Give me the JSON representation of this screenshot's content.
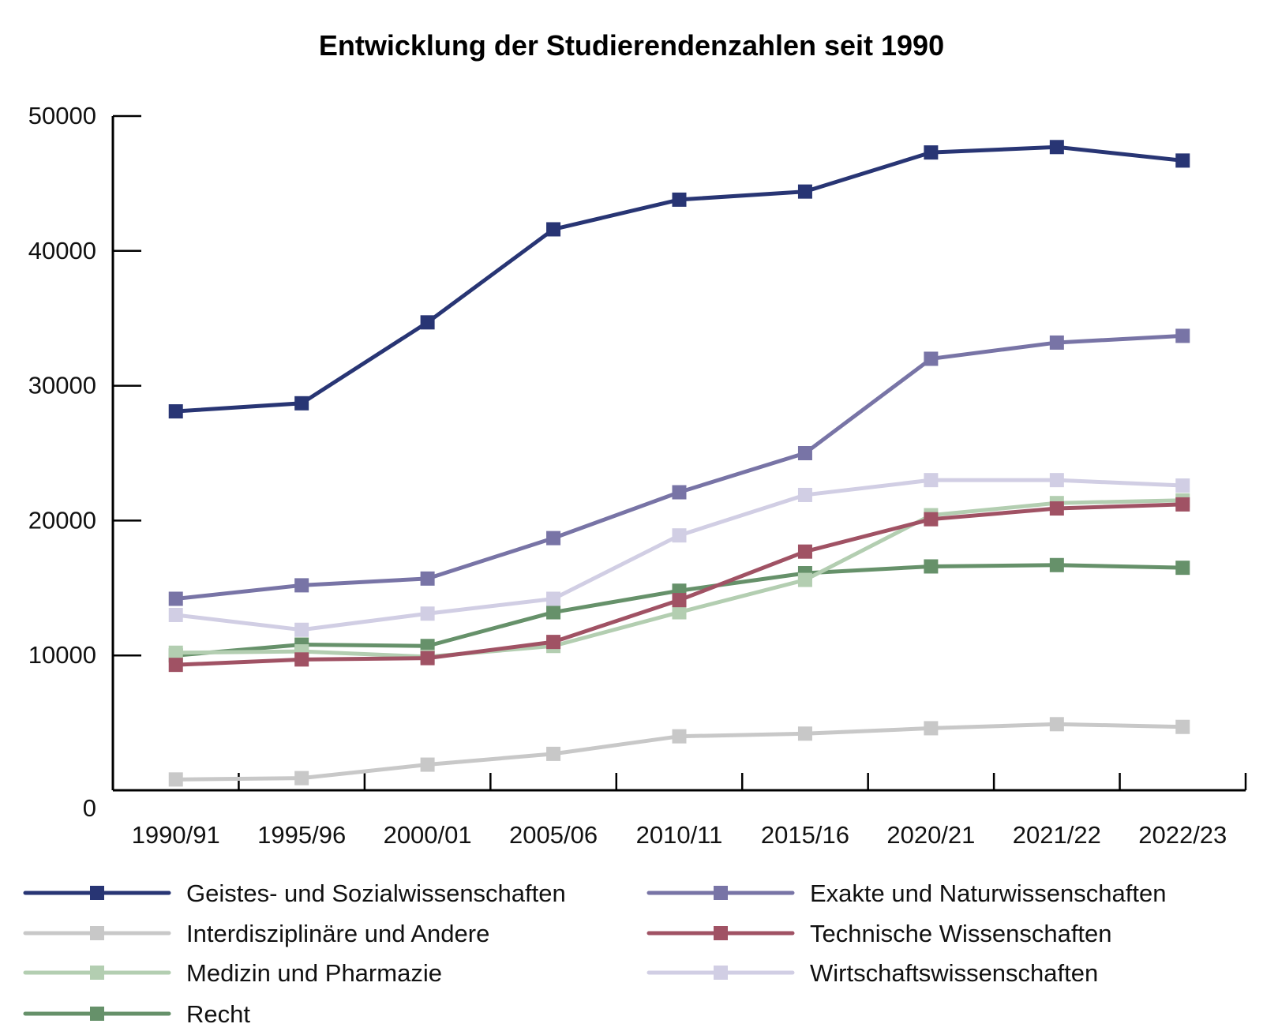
{
  "chart_data": {
    "type": "line",
    "title": "Entwicklung der Studierendenzahlen seit 1990",
    "xlabel": "",
    "ylabel": "",
    "ylim": [
      0,
      50000
    ],
    "yticks": [
      0,
      10000,
      20000,
      30000,
      40000,
      50000
    ],
    "ytick_labels": [
      "0",
      "10000",
      "20000",
      "30000",
      "40000",
      "50000"
    ],
    "grid": false,
    "legend_position": "bottom",
    "categories": [
      "1990/91",
      "1995/96",
      "2000/01",
      "2005/06",
      "2010/11",
      "2015/16",
      "2020/21",
      "2021/22",
      "2022/23"
    ],
    "series": [
      {
        "name": "Geistes- und Sozialwissenschaften",
        "color": "#283574",
        "marker": "square",
        "values": [
          28100,
          28700,
          34700,
          41600,
          43800,
          44400,
          47300,
          47700,
          46700
        ]
      },
      {
        "name": "Exakte und Naturwissenschaften",
        "color": "#7874A6",
        "marker": "square",
        "values": [
          14200,
          15200,
          15700,
          18700,
          22100,
          25000,
          32000,
          33200,
          33700
        ]
      },
      {
        "name": "Interdisziplinäre und Andere",
        "color": "#C8C8C8",
        "marker": "square",
        "values": [
          800,
          900,
          1900,
          2700,
          4000,
          4200,
          4600,
          4900,
          4700
        ]
      },
      {
        "name": "Technische Wissenschaften",
        "color": "#A05264",
        "marker": "square",
        "values": [
          9300,
          9700,
          9800,
          11000,
          14100,
          17700,
          20100,
          20900,
          21200
        ]
      },
      {
        "name": "Medizin und Pharmazie",
        "color": "#B3CEB1",
        "marker": "square",
        "values": [
          10200,
          10300,
          9900,
          10700,
          13200,
          15600,
          20400,
          21300,
          21500
        ]
      },
      {
        "name": "Wirtschaftswissenschaften",
        "color": "#D1CEE4",
        "marker": "square",
        "values": [
          13000,
          11900,
          13100,
          14200,
          18900,
          21900,
          23000,
          23000,
          22600
        ]
      },
      {
        "name": "Recht",
        "color": "#66916A",
        "marker": "square",
        "values": [
          10000,
          10800,
          10700,
          13200,
          14800,
          16100,
          16600,
          16700,
          16500
        ]
      }
    ],
    "legend_order": [
      "Geistes- und Sozialwissenschaften",
      "Exakte und Naturwissenschaften",
      "Interdisziplinäre und Andere",
      "Technische Wissenschaften",
      "Medizin und Pharmazie",
      "Wirtschaftswissenschaften",
      "Recht"
    ]
  }
}
